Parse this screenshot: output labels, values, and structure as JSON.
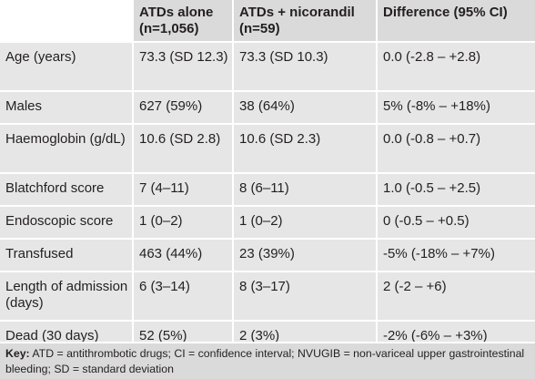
{
  "table": {
    "headers": [
      "",
      "ATDs alone (n=1,056)",
      "ATDs + nicorandil (n=59)",
      "Difference (95% CI)"
    ],
    "rows": [
      [
        "Age (years)",
        "73.3 (SD 12.3)",
        "73.3 (SD 10.3)",
        "0.0 (-2.8 – +2.8)"
      ],
      [
        "Males",
        "627 (59%)",
        "38 (64%)",
        "5% (-8% – +18%)"
      ],
      [
        "Haemoglobin (g/dL)",
        "10.6 (SD 2.8)",
        "10.6 (SD 2.3)",
        "0.0 (-0.8 – +0.7)"
      ],
      [
        "Blatchford score",
        "7 (4–11)",
        "8 (6–11)",
        "1.0 (-0.5 – +2.5)"
      ],
      [
        "Endoscopic score",
        "1 (0–2)",
        "1 (0–2)",
        "0 (-0.5 – +0.5)"
      ],
      [
        "Transfused",
        "463 (44%)",
        "23 (39%)",
        "-5% (-18% – +7%)"
      ],
      [
        "Length of admission (days)",
        "6 (3–14)",
        "8 (3–17)",
        "2 (-2 – +6)"
      ],
      [
        "Dead (30 days)",
        "52 (5%)",
        "2 (3%)",
        "-2% (-6% – +3%)"
      ]
    ]
  },
  "key": {
    "label": "Key:",
    "text": " ATD = antithrombotic drugs; CI = confidence interval; NVUGIB = non-variceal upper gastrointestinal bleeding; SD = standard deviation"
  }
}
